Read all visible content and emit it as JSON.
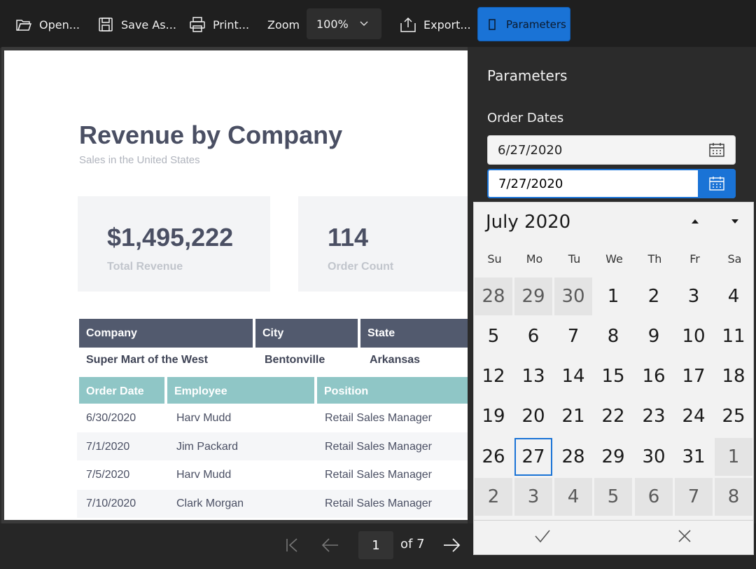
{
  "toolbar": {
    "open_label": "Open...",
    "save_as_label": "Save As...",
    "print_label": "Print...",
    "zoom_label": "Zoom",
    "zoom_value": "100%",
    "export_label": "Export...",
    "parameters_label": "Parameters"
  },
  "report": {
    "title": "Revenue by Company",
    "subtitle": "Sales in the United States",
    "kpis": [
      {
        "value": "$1,495,222",
        "label": "Total Revenue"
      },
      {
        "value": "114",
        "label": "Order Count"
      }
    ],
    "company_headers": [
      "Company",
      "City",
      "State"
    ],
    "company": {
      "name": "Super Mart of the West",
      "city": "Bentonville",
      "state": "Arkansas"
    },
    "order_headers": [
      "Order Date",
      "Employee",
      "Position"
    ],
    "orders": [
      {
        "date": "6/30/2020",
        "employee": "Harv Mudd",
        "position": "Retail Sales Manager"
      },
      {
        "date": "7/1/2020",
        "employee": "Jim Packard",
        "position": "Retail Sales Manager"
      },
      {
        "date": "7/5/2020",
        "employee": "Harv Mudd",
        "position": "Retail Sales Manager"
      },
      {
        "date": "7/10/2020",
        "employee": "Clark Morgan",
        "position": "Retail Sales Manager"
      }
    ]
  },
  "pager": {
    "current": "1",
    "of_label": "of 7"
  },
  "parameters": {
    "title": "Parameters",
    "order_dates_label": "Order Dates",
    "start_date": "6/27/2020",
    "end_date": "7/27/2020"
  },
  "calendar": {
    "month_label": "July 2020",
    "weekdays": [
      "Su",
      "Mo",
      "Tu",
      "We",
      "Th",
      "Fr",
      "Sa"
    ],
    "weeks": [
      [
        "28",
        "29",
        "30",
        "1",
        "2",
        "3",
        "4"
      ],
      [
        "5",
        "6",
        "7",
        "8",
        "9",
        "10",
        "11"
      ],
      [
        "12",
        "13",
        "14",
        "15",
        "16",
        "17",
        "18"
      ],
      [
        "19",
        "20",
        "21",
        "22",
        "23",
        "24",
        "25"
      ],
      [
        "26",
        "27",
        "28",
        "29",
        "30",
        "31",
        "1"
      ],
      [
        "2",
        "3",
        "4",
        "5",
        "6",
        "7",
        "8"
      ]
    ],
    "selected_day": "27",
    "accent": "#1a73d6"
  }
}
